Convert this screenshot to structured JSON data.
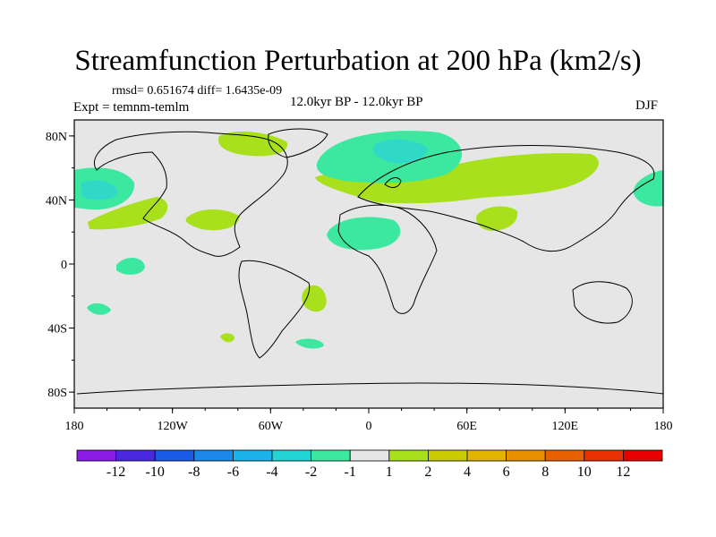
{
  "title": "Streamfunction Perturbation at 200 hPa (km2/s)",
  "stats": "rmsd= 0.651674 diff= 1.6435e-09",
  "expt": "Expt = temnm-temlm",
  "period": "12.0kyr BP - 12.0kyr BP",
  "season": "DJF",
  "colors": {
    "background": "#e6e6e6",
    "neg_2_1": "#3ce8a0",
    "neg_4_2": "#30d8c8",
    "pos_1_2": "#a8e01c"
  },
  "map": {
    "lon_ticks": [
      "180",
      "120W",
      "60W",
      "0",
      "60E",
      "120E",
      "180"
    ],
    "lat_ticks": [
      "80N",
      "40N",
      "0",
      "40S",
      "80S"
    ]
  },
  "colorbar": {
    "labels": [
      "-12",
      "-10",
      "-8",
      "-6",
      "-4",
      "-2",
      "-1",
      "1",
      "2",
      "4",
      "6",
      "8",
      "10",
      "12"
    ],
    "colors": [
      "#8a1ce8",
      "#4a28e0",
      "#1c5ae8",
      "#1c88e8",
      "#1cb4e8",
      "#22d4d4",
      "#3ce8a0",
      "#e6e6e6",
      "#a8e01c",
      "#c8cc00",
      "#e0b400",
      "#e89000",
      "#e86000",
      "#e83000",
      "#e80000"
    ]
  }
}
